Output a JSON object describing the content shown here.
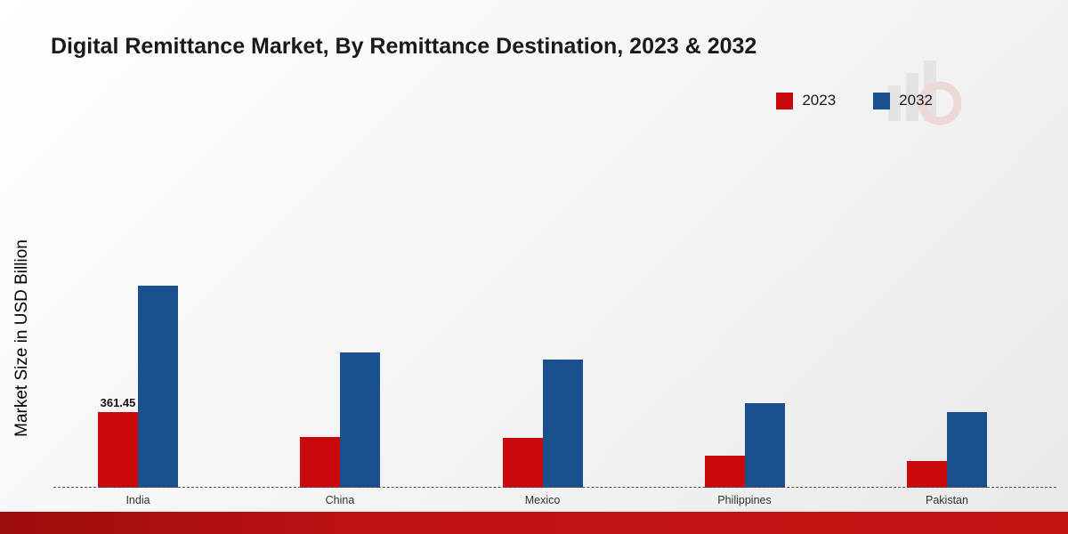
{
  "title": "Digital Remittance Market, By Remittance Destination, 2023 & 2032",
  "y_axis_label": "Market Size in USD Billion",
  "legend": [
    {
      "label": "2023",
      "color": "#c9090c"
    },
    {
      "label": "2032",
      "color": "#1b508e"
    }
  ],
  "chart_data": {
    "type": "bar",
    "title": "Digital Remittance Market, By Remittance Destination, 2023 & 2032",
    "xlabel": "",
    "ylabel": "Market Size in USD Billion",
    "categories": [
      "India",
      "China",
      "Mexico",
      "Philippines",
      "Pakistan"
    ],
    "series": [
      {
        "name": "2023",
        "color": "#c9090c",
        "values": [
          361.45,
          243,
          238,
          152,
          128
        ]
      },
      {
        "name": "2032",
        "color": "#1b508e",
        "values": [
          960,
          646,
          612,
          404,
          362
        ]
      }
    ],
    "ylim": [
      0,
      1000
    ],
    "grid": false,
    "legend_position": "top-right",
    "annotations": [
      {
        "category": "India",
        "series": "2023",
        "text": "361.45"
      }
    ]
  },
  "footer": {
    "band_color": "#bf1212"
  }
}
